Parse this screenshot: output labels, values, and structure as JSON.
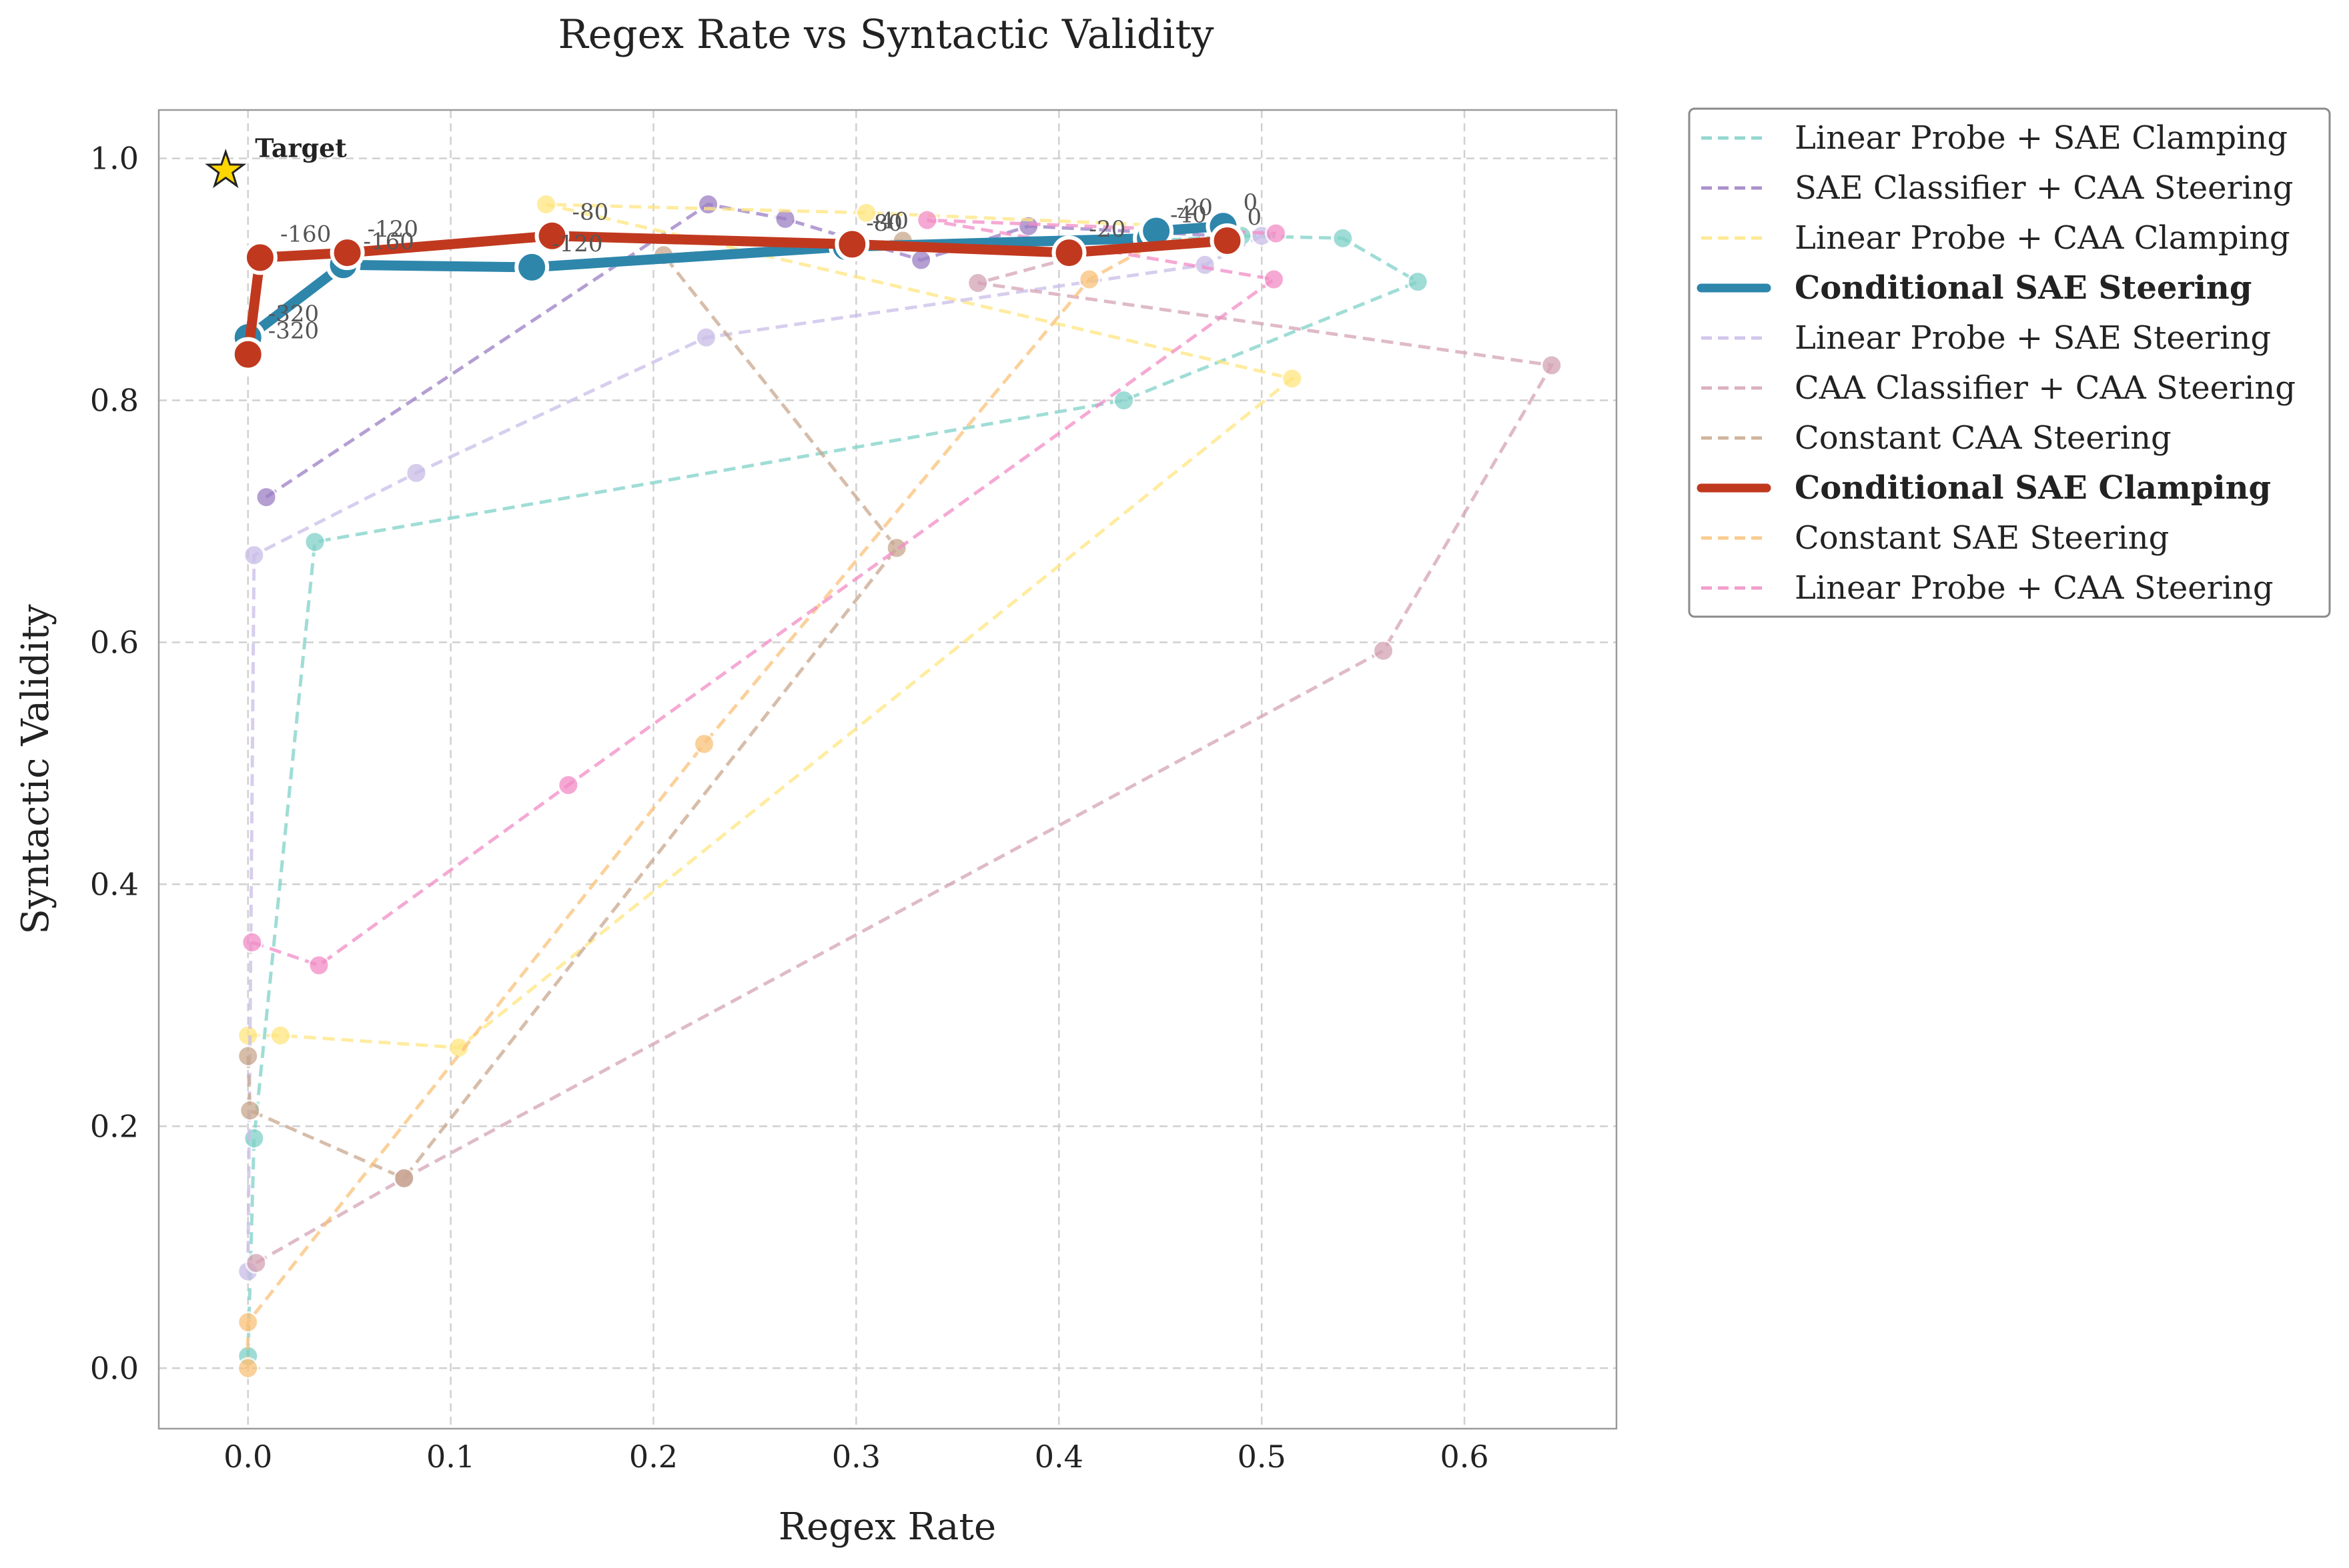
{
  "chart_data": {
    "type": "scatter",
    "title": "Regex Rate vs Syntactic Validity",
    "xlabel": "Regex Rate",
    "ylabel": "Syntactic Validity",
    "xlim": [
      -0.044,
      0.675
    ],
    "ylim": [
      -0.05,
      1.04
    ],
    "xticks": [
      0.0,
      0.1,
      0.2,
      0.3,
      0.4,
      0.5,
      0.6
    ],
    "xtick_labels": [
      "0.0",
      "0.1",
      "0.2",
      "0.3",
      "0.4",
      "0.5",
      "0.6"
    ],
    "yticks": [
      0.0,
      0.2,
      0.4,
      0.6,
      0.8,
      1.0
    ],
    "ytick_labels": [
      "0.0",
      "0.2",
      "0.4",
      "0.6",
      "0.8",
      "1.0"
    ],
    "grid": true,
    "legend_position": "outside-top-right",
    "target": {
      "label": "Target",
      "x": -0.011,
      "y": 0.99,
      "color": "#FFD700"
    },
    "series": [
      {
        "name": "Linear Probe + SAE Clamping",
        "color": "#7fd1c8",
        "style": "dashed",
        "emphasis": false,
        "points": [
          [
            0.0,
            0.01
          ],
          [
            0.003,
            0.19
          ],
          [
            0.033,
            0.683
          ],
          [
            0.432,
            0.8
          ],
          [
            0.577,
            0.898
          ],
          [
            0.54,
            0.934
          ],
          [
            0.49,
            0.936
          ],
          [
            0.447,
            0.932
          ]
        ]
      },
      {
        "name": "SAE Classifier + CAA Steering",
        "color": "#9b7ec4",
        "style": "dashed",
        "emphasis": false,
        "points": [
          [
            0.009,
            0.72
          ],
          [
            0.227,
            0.962
          ],
          [
            0.265,
            0.95
          ],
          [
            0.332,
            0.916
          ],
          [
            0.385,
            0.944
          ],
          [
            0.48,
            0.936
          ]
        ]
      },
      {
        "name": "Linear Probe + CAA Clamping",
        "color": "#ffe680",
        "style": "dashed",
        "emphasis": false,
        "points": [
          [
            0.0,
            0.275
          ],
          [
            0.016,
            0.275
          ],
          [
            0.104,
            0.265
          ],
          [
            0.515,
            0.818
          ],
          [
            0.147,
            0.962
          ],
          [
            0.305,
            0.955
          ],
          [
            0.445,
            0.945
          ]
        ]
      },
      {
        "name": "Conditional SAE Steering",
        "color": "#2e86ab",
        "style": "solid",
        "emphasis": true,
        "points": [
          [
            0.0,
            0.852
          ],
          [
            0.047,
            0.912
          ],
          [
            0.14,
            0.91
          ],
          [
            0.295,
            0.927
          ],
          [
            0.445,
            0.934
          ],
          [
            0.448,
            0.94
          ],
          [
            0.481,
            0.944
          ]
        ],
        "point_labels": [
          "-320",
          "-160",
          "-120",
          "-80",
          "-40",
          "-20",
          "0"
        ]
      },
      {
        "name": "Linear Probe + SAE Steering",
        "color": "#c9bde8",
        "style": "dashed",
        "emphasis": false,
        "points": [
          [
            0.0,
            0.08
          ],
          [
            0.003,
            0.672
          ],
          [
            0.083,
            0.74
          ],
          [
            0.226,
            0.852
          ],
          [
            0.472,
            0.912
          ],
          [
            0.5,
            0.936
          ]
        ]
      },
      {
        "name": "CAA Classifier + CAA Steering",
        "color": "#d4a3b5",
        "style": "dashed",
        "emphasis": false,
        "points": [
          [
            0.004,
            0.087
          ],
          [
            0.077,
            0.157
          ],
          [
            0.56,
            0.593
          ],
          [
            0.643,
            0.829
          ],
          [
            0.36,
            0.897
          ],
          [
            0.44,
            0.933
          ]
        ]
      },
      {
        "name": "Constant CAA Steering",
        "color": "#c8a78e",
        "style": "dashed",
        "emphasis": false,
        "points": [
          [
            0.0,
            0.258
          ],
          [
            0.001,
            0.213
          ],
          [
            0.077,
            0.157
          ],
          [
            0.32,
            0.678
          ],
          [
            0.205,
            0.92
          ],
          [
            0.323,
            0.932
          ]
        ]
      },
      {
        "name": "Conditional SAE Clamping",
        "color": "#c0391f",
        "style": "solid",
        "emphasis": true,
        "points": [
          [
            0.0,
            0.838
          ],
          [
            0.006,
            0.918
          ],
          [
            0.049,
            0.922
          ],
          [
            0.15,
            0.936
          ],
          [
            0.298,
            0.929
          ],
          [
            0.405,
            0.922
          ],
          [
            0.483,
            0.932
          ]
        ],
        "point_labels": [
          "-320",
          "-160",
          "-120",
          "-80",
          "-40",
          "-20",
          "0"
        ]
      },
      {
        "name": "Constant SAE Steering",
        "color": "#f9c27a",
        "style": "dashed",
        "emphasis": false,
        "points": [
          [
            0.0,
            0.0
          ],
          [
            0.0,
            0.038
          ],
          [
            0.225,
            0.516
          ],
          [
            0.415,
            0.9
          ],
          [
            0.45,
            0.932
          ]
        ]
      },
      {
        "name": "Linear Probe + CAA Steering",
        "color": "#f28cc5",
        "style": "dashed",
        "emphasis": false,
        "points": [
          [
            0.002,
            0.352
          ],
          [
            0.035,
            0.333
          ],
          [
            0.158,
            0.482
          ],
          [
            0.506,
            0.9
          ],
          [
            0.335,
            0.949
          ],
          [
            0.507,
            0.938
          ]
        ]
      }
    ]
  }
}
